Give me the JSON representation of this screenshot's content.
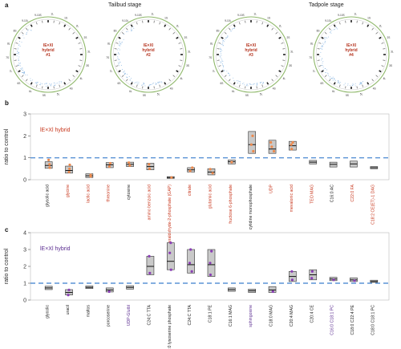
{
  "panel_a": {
    "letter": "a",
    "stages": [
      "Tailbud stage",
      "Tadpole stage"
    ],
    "circos": [
      {
        "hybrid": "hybrid",
        "id": "#1"
      },
      {
        "hybrid": "hybrid",
        "id": "#2"
      },
      {
        "hybrid": "hybrid",
        "id": "#3"
      },
      {
        "hybrid": "hybrid",
        "id": "#4"
      }
    ],
    "cross_label": "lE×Xl"
  },
  "chart_data": [
    {
      "panel": "b",
      "type": "box",
      "legend": "lE×Xl hybrid",
      "ylabel": "ratio to control",
      "ylim": [
        0,
        3
      ],
      "yticks": [
        0,
        1,
        2,
        3
      ],
      "reference_line": 1,
      "colors": {
        "box": "#c9c9c9",
        "point": "#ec8a4e",
        "line": "#5b93d5",
        "red_label": "#c8381e",
        "purple_label": "#5b2d90",
        "black_label": "#222222"
      },
      "categories": [
        {
          "label": "glycolic acid",
          "color": "black",
          "median": 0.65,
          "q1": 0.52,
          "q3": 0.82,
          "points": [
            0.55,
            0.7,
            0.9
          ]
        },
        {
          "label": "glycine",
          "color": "red",
          "median": 0.42,
          "q1": 0.3,
          "q3": 0.62,
          "points": [
            0.35,
            0.5,
            0.68
          ]
        },
        {
          "label": "lactic acid",
          "color": "red",
          "median": 0.18,
          "q1": 0.1,
          "q3": 0.27,
          "points": [
            0.15,
            0.22
          ]
        },
        {
          "label": "threonine",
          "color": "red",
          "median": 0.68,
          "q1": 0.55,
          "q3": 0.78,
          "points": [
            0.6,
            0.75
          ]
        },
        {
          "label": "cytosine",
          "color": "black",
          "median": 0.7,
          "q1": 0.6,
          "q3": 0.8,
          "points": [
            0.65,
            0.78
          ]
        },
        {
          "label": "amino benzoic acid",
          "color": "red",
          "median": 0.6,
          "q1": 0.45,
          "q3": 0.75,
          "points": [
            0.5,
            0.7
          ]
        },
        {
          "label": "glyceraldehyde-2-phosphate (GAP)",
          "color": "red",
          "median": 0.1,
          "q1": 0.06,
          "q3": 0.14,
          "points": [
            0.1
          ]
        },
        {
          "label": "citrate",
          "color": "red",
          "median": 0.45,
          "q1": 0.35,
          "q3": 0.55,
          "points": [
            0.4,
            0.55
          ]
        },
        {
          "label": "glutamic acid",
          "color": "red",
          "median": 0.35,
          "q1": 0.22,
          "q3": 0.5,
          "points": [
            0.3,
            0.48
          ]
        },
        {
          "label": "fructose 6-phosphate",
          "color": "red",
          "median": 0.82,
          "q1": 0.72,
          "q3": 0.9,
          "points": [
            0.8
          ]
        },
        {
          "label": "cytidine monophosphate",
          "color": "black",
          "median": 1.6,
          "q1": 1.2,
          "q3": 2.2,
          "points": [
            1.3,
            1.6,
            2.0
          ]
        },
        {
          "label": "UDP",
          "color": "red",
          "median": 1.4,
          "q1": 1.2,
          "q3": 1.8,
          "points": [
            1.3,
            1.5,
            1.7
          ]
        },
        {
          "label": "mevalonic acid",
          "color": "red",
          "median": 1.55,
          "q1": 1.35,
          "q3": 1.75,
          "points": [
            1.4,
            1.6,
            1.7
          ]
        },
        {
          "label": "TEO MAG",
          "color": "red",
          "median": 0.8,
          "q1": 0.72,
          "q3": 0.88,
          "points": []
        },
        {
          "label": "C16:0 AC",
          "color": "black",
          "median": 0.7,
          "q1": 0.58,
          "q3": 0.8,
          "points": []
        },
        {
          "label": "C22:0 FA",
          "color": "red",
          "median": 0.72,
          "q1": 0.58,
          "q3": 0.85,
          "points": []
        },
        {
          "label": "C18:2 CE(ET)-1 DAG",
          "color": "red",
          "median": 0.55,
          "q1": 0.5,
          "q3": 0.6,
          "points": []
        }
      ]
    },
    {
      "panel": "c",
      "type": "box",
      "legend": "lE×Xl hybrid",
      "ylabel": "ratio to control",
      "ylim": [
        0,
        4
      ],
      "yticks": [
        0,
        1,
        2,
        3,
        4
      ],
      "reference_line": 1,
      "colors": {
        "box": "#c9c9c9",
        "point": "#8a3fb5",
        "line": "#5b93d5",
        "purple_label": "#5b2d90",
        "black_label": "#222222"
      },
      "categories": [
        {
          "label": "glycolic",
          "color": "black",
          "median": 0.72,
          "q1": 0.62,
          "q3": 0.82,
          "points": []
        },
        {
          "label": "uracil",
          "color": "black",
          "median": 0.45,
          "q1": 0.3,
          "q3": 0.62,
          "points": [
            0.3,
            0.6
          ]
        },
        {
          "label": "maltos",
          "color": "black",
          "median": 0.75,
          "q1": 0.68,
          "q3": 0.84,
          "points": []
        },
        {
          "label": "porcoserine",
          "color": "black",
          "median": 0.6,
          "q1": 0.48,
          "q3": 0.72,
          "points": [
            0.5
          ]
        },
        {
          "label": "UDP-Glutbl",
          "color": "purple",
          "median": 0.75,
          "q1": 0.65,
          "q3": 0.85,
          "points": []
        },
        {
          "label": "C24:C TTA",
          "color": "black",
          "median": 2.0,
          "q1": 1.5,
          "q3": 2.6,
          "points": [
            1.6,
            2.6
          ]
        },
        {
          "label": "C18:0 lysoserine phosphate",
          "color": "black",
          "median": 2.3,
          "q1": 1.8,
          "q3": 3.4,
          "points": [
            1.8,
            2.8,
            3.4
          ]
        },
        {
          "label": "C24:C TTA",
          "color": "black",
          "median": 2.1,
          "q1": 1.6,
          "q3": 3.0,
          "points": [
            1.7,
            2.2,
            3.0
          ]
        },
        {
          "label": "C18:1 PE",
          "color": "black",
          "median": 2.1,
          "q1": 1.4,
          "q3": 3.0,
          "points": [
            1.5,
            2.2,
            2.9
          ]
        },
        {
          "label": "C16:1 MAG",
          "color": "black",
          "median": 0.62,
          "q1": 0.52,
          "q3": 0.72,
          "points": []
        },
        {
          "label": "sphingosine",
          "color": "purple",
          "median": 0.55,
          "q1": 0.45,
          "q3": 0.65,
          "points": []
        },
        {
          "label": "C18:0 MAG",
          "color": "black",
          "median": 0.6,
          "q1": 0.45,
          "q3": 0.8,
          "points": [
            0.5
          ]
        },
        {
          "label": "C20:4 MAG",
          "color": "black",
          "median": 1.4,
          "q1": 1.1,
          "q3": 1.7,
          "points": [
            1.2,
            1.7
          ]
        },
        {
          "label": "C20:4 CE",
          "color": "black",
          "median": 1.5,
          "q1": 1.2,
          "q3": 1.8,
          "points": [
            1.3,
            1.7
          ]
        },
        {
          "label": "C16:0 C18:1 PC",
          "color": "purple",
          "median": 1.25,
          "q1": 1.15,
          "q3": 1.35,
          "points": [
            1.2
          ]
        },
        {
          "label": "C18:0 C22:4 PE",
          "color": "black",
          "median": 1.2,
          "q1": 1.1,
          "q3": 1.32,
          "points": [
            1.15
          ]
        },
        {
          "label": "C18:0 C18:1 PC",
          "color": "black",
          "median": 1.1,
          "q1": 1.05,
          "q3": 1.18,
          "points": []
        }
      ]
    }
  ]
}
